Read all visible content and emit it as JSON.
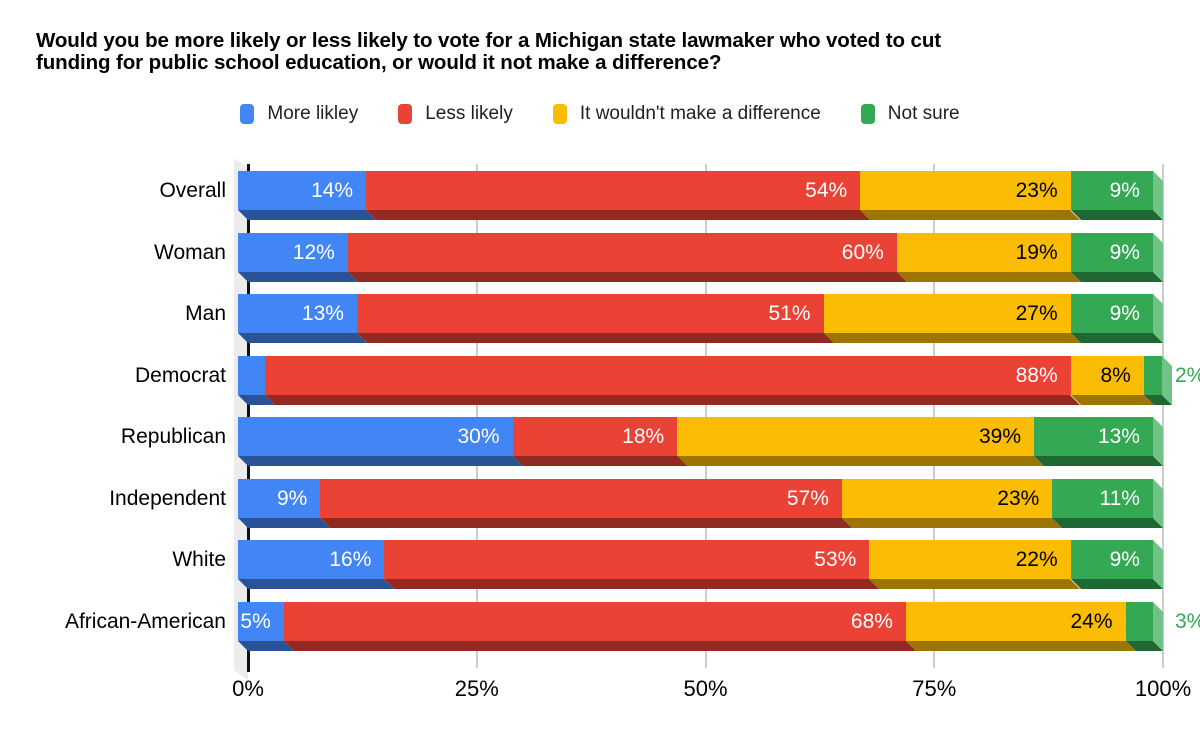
{
  "title": {
    "line1": "Would you be more likely or less likely to vote for a Michigan state lawmaker who voted to cut",
    "line2": "funding for public school education, or would it not make a difference?"
  },
  "chart_data": {
    "type": "bar",
    "stacked": true,
    "orientation": "horizontal",
    "effect": "3d-oblique",
    "title": "Would you be more likely or less likely to vote for a Michigan state lawmaker who voted to cut funding for public school education, or would it not make a difference?",
    "categories": [
      "Overall",
      "Woman",
      "Man",
      "Democrat",
      "Republican",
      "Independent",
      "White",
      "African-American"
    ],
    "series": [
      {
        "name": "More likley",
        "color": "#4285F4",
        "text_color": "#ffffff",
        "values": [
          14,
          12,
          13,
          3,
          30,
          9,
          16,
          5
        ]
      },
      {
        "name": "Less likely",
        "color": "#EA4335",
        "text_color": "#ffffff",
        "values": [
          54,
          60,
          51,
          88,
          18,
          57,
          53,
          68
        ]
      },
      {
        "name": "It wouldn't make a difference",
        "color": "#FBBC04",
        "text_color": "#000000",
        "values": [
          23,
          19,
          27,
          8,
          39,
          23,
          22,
          24
        ]
      },
      {
        "name": "Not sure",
        "color": "#34A853",
        "text_color": "#ffffff",
        "values": [
          9,
          9,
          9,
          2,
          13,
          11,
          9,
          3
        ]
      }
    ],
    "value_suffix": "%",
    "x_axis": {
      "range": [
        0,
        100
      ],
      "gridlines": true,
      "ticks": [
        {
          "value": 0,
          "label": "0%"
        },
        {
          "value": 25,
          "label": "25%"
        },
        {
          "value": 50,
          "label": "50%"
        },
        {
          "value": 75,
          "label": "75%"
        },
        {
          "value": 100,
          "label": "100%"
        }
      ]
    },
    "legend_position": "top"
  },
  "style_colors": {
    "axis": "#111111",
    "gridline": "#cccccc",
    "wall": "#ececec",
    "background": "#ffffff"
  }
}
